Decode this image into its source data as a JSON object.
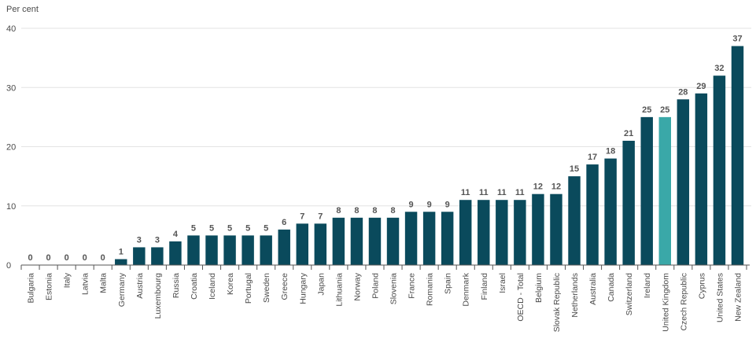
{
  "chart_data": {
    "type": "bar",
    "ylabel": "Per cent",
    "ylim": [
      0,
      40
    ],
    "yticks": [
      0,
      10,
      20,
      30,
      40
    ],
    "grid": true,
    "colors": {
      "default": "#0a4a5c",
      "highlight": "#3aa8a8"
    },
    "highlight": "United Kingdom",
    "categories": [
      "Bulgaria",
      "Estonia",
      "Italy",
      "Latvia",
      "Malta",
      "Germany",
      "Austria",
      "Luxembourg",
      "Russia",
      "Croatia",
      "Iceland",
      "Korea",
      "Portugal",
      "Sweden",
      "Greece",
      "Hungary",
      "Japan",
      "Lithuania",
      "Norway",
      "Poland",
      "Slovenia",
      "France",
      "Romania",
      "Spain",
      "Denmark",
      "Finland",
      "Israel",
      "OECD - Total",
      "Belgium",
      "Slovak Republic",
      "Netherlands",
      "Australia",
      "Canada",
      "Switzerland",
      "Ireland",
      "United Kingdom",
      "Czech Republic",
      "Cyprus",
      "United States",
      "New Zealand"
    ],
    "values": [
      0,
      0,
      0,
      0,
      0,
      1,
      3,
      3,
      4,
      5,
      5,
      5,
      5,
      5,
      6,
      7,
      7,
      8,
      8,
      8,
      8,
      9,
      9,
      9,
      11,
      11,
      11,
      11,
      12,
      12,
      15,
      17,
      18,
      21,
      25,
      25,
      28,
      29,
      32,
      37
    ]
  }
}
